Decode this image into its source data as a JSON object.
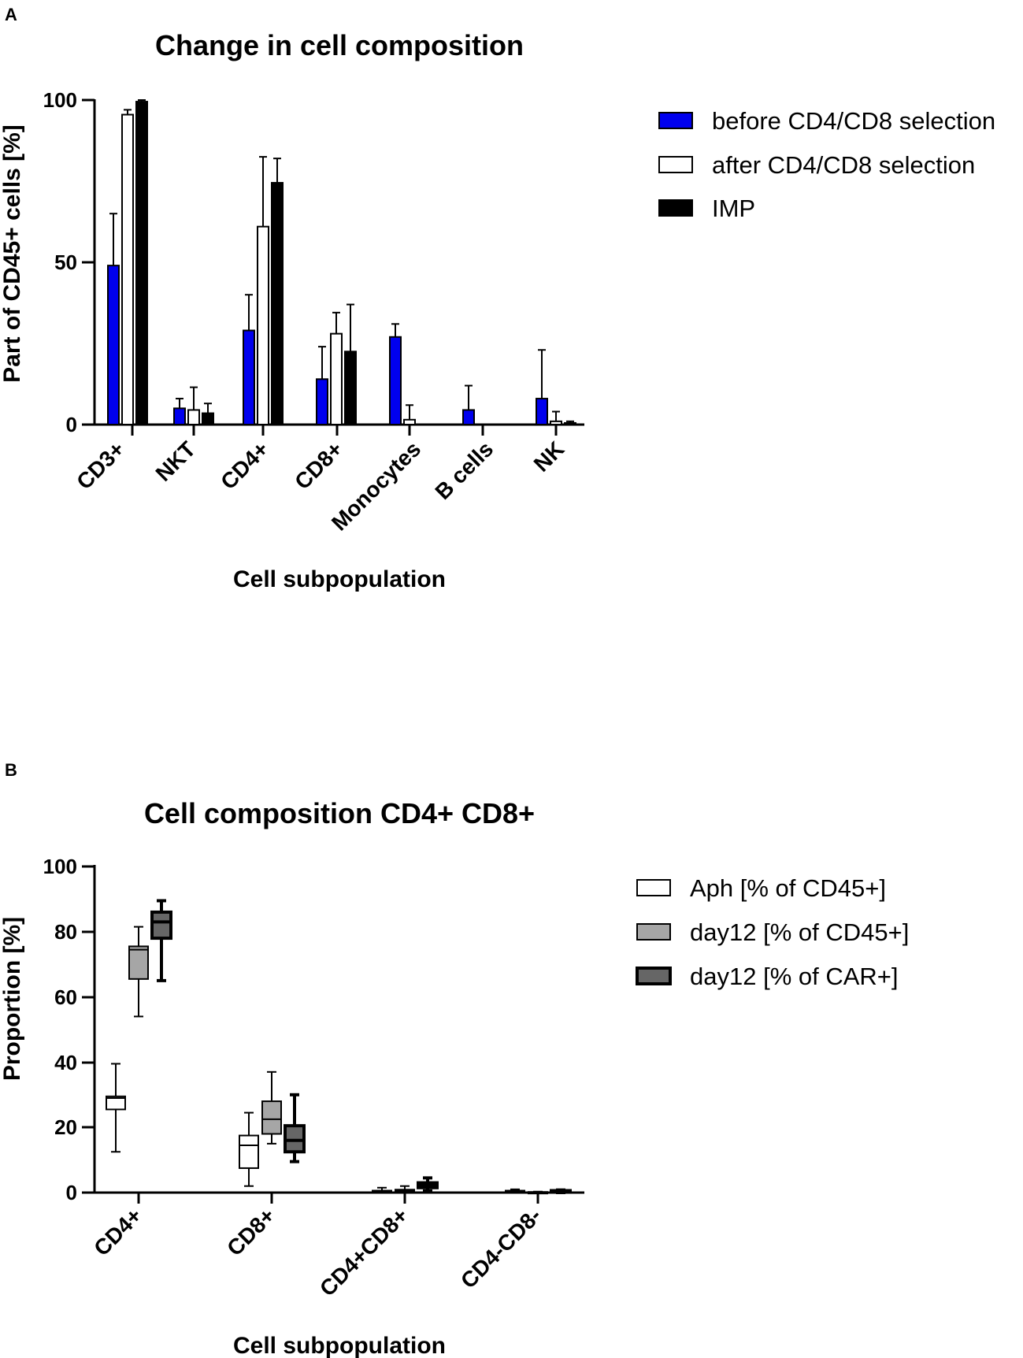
{
  "chart_data": [
    {
      "type": "bar",
      "panel": "A",
      "title": "Change in cell composition",
      "xlabel": "Cell subpopulation",
      "ylabel": "Part of CD45+ cells [%]",
      "ylim": [
        0,
        100
      ],
      "yticks": [
        0,
        50,
        100
      ],
      "categories": [
        "CD3+",
        "NKT",
        "CD4+",
        "CD8+",
        "Monocytes",
        "B cells",
        "NK"
      ],
      "series": [
        {
          "name": "before CD4/CD8 selection",
          "color": "#0000ee",
          "values": [
            49,
            5,
            29,
            14,
            27,
            4.5,
            8
          ],
          "error_upper": [
            65,
            8,
            40,
            24,
            31,
            12,
            23
          ]
        },
        {
          "name": "after CD4/CD8 selection",
          "color": "#ffffff",
          "values": [
            95.5,
            4.5,
            61,
            28,
            1.5,
            0,
            1
          ],
          "error_upper": [
            97,
            11.5,
            82.5,
            34.5,
            6,
            0,
            4
          ]
        },
        {
          "name": "IMP",
          "color": "#000000",
          "values": [
            99.5,
            3.5,
            74.5,
            22.5,
            0,
            0,
            0.5
          ],
          "error_upper": [
            100,
            6.5,
            82,
            37,
            0,
            0,
            1
          ]
        }
      ],
      "legend_position": "right"
    },
    {
      "type": "box",
      "panel": "B",
      "title": "Cell composition CD4+ CD8+",
      "xlabel": "Cell subpopulation",
      "ylabel": "Proportion [%]",
      "ylim": [
        0,
        100
      ],
      "yticks": [
        0,
        20,
        40,
        60,
        80,
        100
      ],
      "categories": [
        "CD4+",
        "CD8+",
        "CD4+CD8+",
        "CD4-CD8-"
      ],
      "series": [
        {
          "name": "Aph [% of CD45+]",
          "color": "#ffffff",
          "boxes": [
            {
              "min": 12.5,
              "q1": 25.5,
              "median": 29,
              "q3": 29.5,
              "max": 39.5
            },
            {
              "min": 2,
              "q1": 7.5,
              "median": 14.5,
              "q3": 17.5,
              "max": 24.5
            },
            {
              "min": 0,
              "q1": 0.2,
              "median": 0.4,
              "q3": 0.6,
              "max": 1.5
            },
            {
              "min": 0,
              "q1": 0.2,
              "median": 0.4,
              "q3": 0.6,
              "max": 1
            }
          ]
        },
        {
          "name": "day12 [% of CD45+]",
          "color": "#a6a6a6",
          "boxes": [
            {
              "min": 54,
              "q1": 65.5,
              "median": 74.5,
              "q3": 75.5,
              "max": 81.5
            },
            {
              "min": 15,
              "q1": 18,
              "median": 22.5,
              "q3": 28,
              "max": 37
            },
            {
              "min": 0,
              "q1": 0.3,
              "median": 0.6,
              "q3": 0.9,
              "max": 2
            },
            {
              "min": 0,
              "q1": 0,
              "median": 0.1,
              "q3": 0.2,
              "max": 0.3
            }
          ]
        },
        {
          "name": "day12 [% of CAR+]",
          "color": "#666666",
          "boxes": [
            {
              "min": 65,
              "q1": 78,
              "median": 83,
              "q3": 86,
              "max": 89.5
            },
            {
              "min": 9.5,
              "q1": 12.5,
              "median": 16,
              "q3": 20.5,
              "max": 30
            },
            {
              "min": 0.5,
              "q1": 1.5,
              "median": 2.2,
              "q3": 3,
              "max": 4.5
            },
            {
              "min": 0,
              "q1": 0.2,
              "median": 0.4,
              "q3": 0.6,
              "max": 0.8
            }
          ]
        }
      ],
      "legend_position": "right"
    }
  ]
}
